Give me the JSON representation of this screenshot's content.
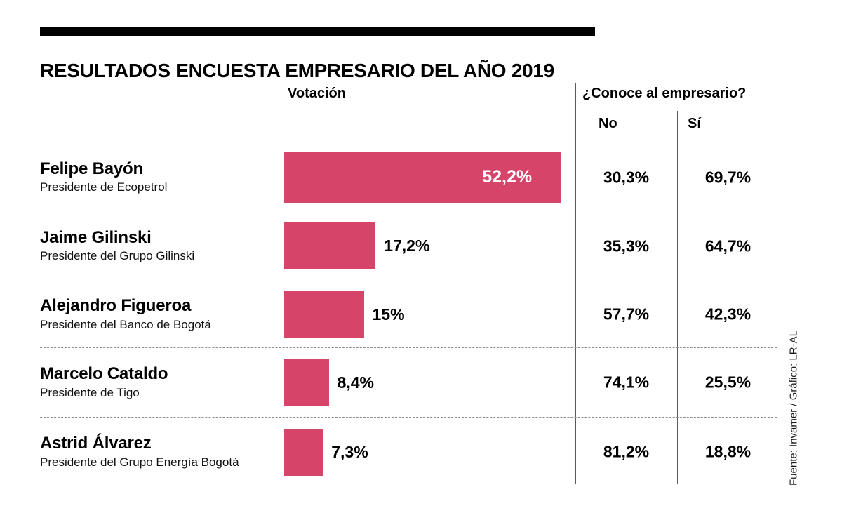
{
  "title": "RESULTADOS ENCUESTA EMPRESARIO DEL AÑO 2019",
  "columns": {
    "votacion": "Votación",
    "conoce": "¿Conoce al empresario?",
    "no": "No",
    "si": "Sí"
  },
  "colors": {
    "bar": "#d64569"
  },
  "source": "Fuente: Invamer / Gráfico: LR-AL",
  "rows": [
    {
      "name": "Felipe Bayón",
      "role": "Presidente de Ecopetrol",
      "votacion": 52.2,
      "votacion_label": "52,2%",
      "no": "30,3%",
      "si": "69,7%"
    },
    {
      "name": "Jaime Gilinski",
      "role": "Presidente del Grupo Gilinski",
      "votacion": 17.2,
      "votacion_label": "17,2%",
      "no": "35,3%",
      "si": "64,7%"
    },
    {
      "name": "Alejandro Figueroa",
      "role": "Presidente del Banco de Bogotá",
      "votacion": 15,
      "votacion_label": "15%",
      "no": "57,7%",
      "si": "42,3%"
    },
    {
      "name": "Marcelo Cataldo",
      "role": "Presidente de Tigo",
      "votacion": 8.4,
      "votacion_label": "8,4%",
      "no": "74,1%",
      "si": "25,5%"
    },
    {
      "name": "Astrid Álvarez",
      "role": "Presidente del Grupo Energía Bogotá",
      "votacion": 7.3,
      "votacion_label": "7,3%",
      "no": "81,2%",
      "si": "18,8%"
    }
  ],
  "chart_data": {
    "type": "bar",
    "orientation": "horizontal",
    "title": "RESULTADOS ENCUESTA EMPRESARIO DEL AÑO 2019",
    "categories": [
      "Felipe Bayón (Presidente de Ecopetrol)",
      "Jaime Gilinski (Presidente del Grupo Gilinski)",
      "Alejandro Figueroa (Presidente del Banco de Bogotá)",
      "Marcelo Cataldo (Presidente de Tigo)",
      "Astrid Álvarez (Presidente del Grupo Energía Bogotá)"
    ],
    "series": [
      {
        "name": "Votación",
        "values": [
          52.2,
          17.2,
          15,
          8.4,
          7.3
        ]
      },
      {
        "name": "No",
        "values": [
          30.3,
          35.3,
          57.7,
          74.1,
          81.2
        ]
      },
      {
        "name": "Sí",
        "values": [
          69.7,
          64.7,
          42.3,
          25.5,
          18.8
        ]
      }
    ],
    "bar_color": "#d64569",
    "xlim": [
      0,
      54
    ],
    "value_suffix": "%",
    "grid": false,
    "legend_position": "column-headers",
    "source": "Fuente: Invamer / Gráfico: LR-AL"
  }
}
